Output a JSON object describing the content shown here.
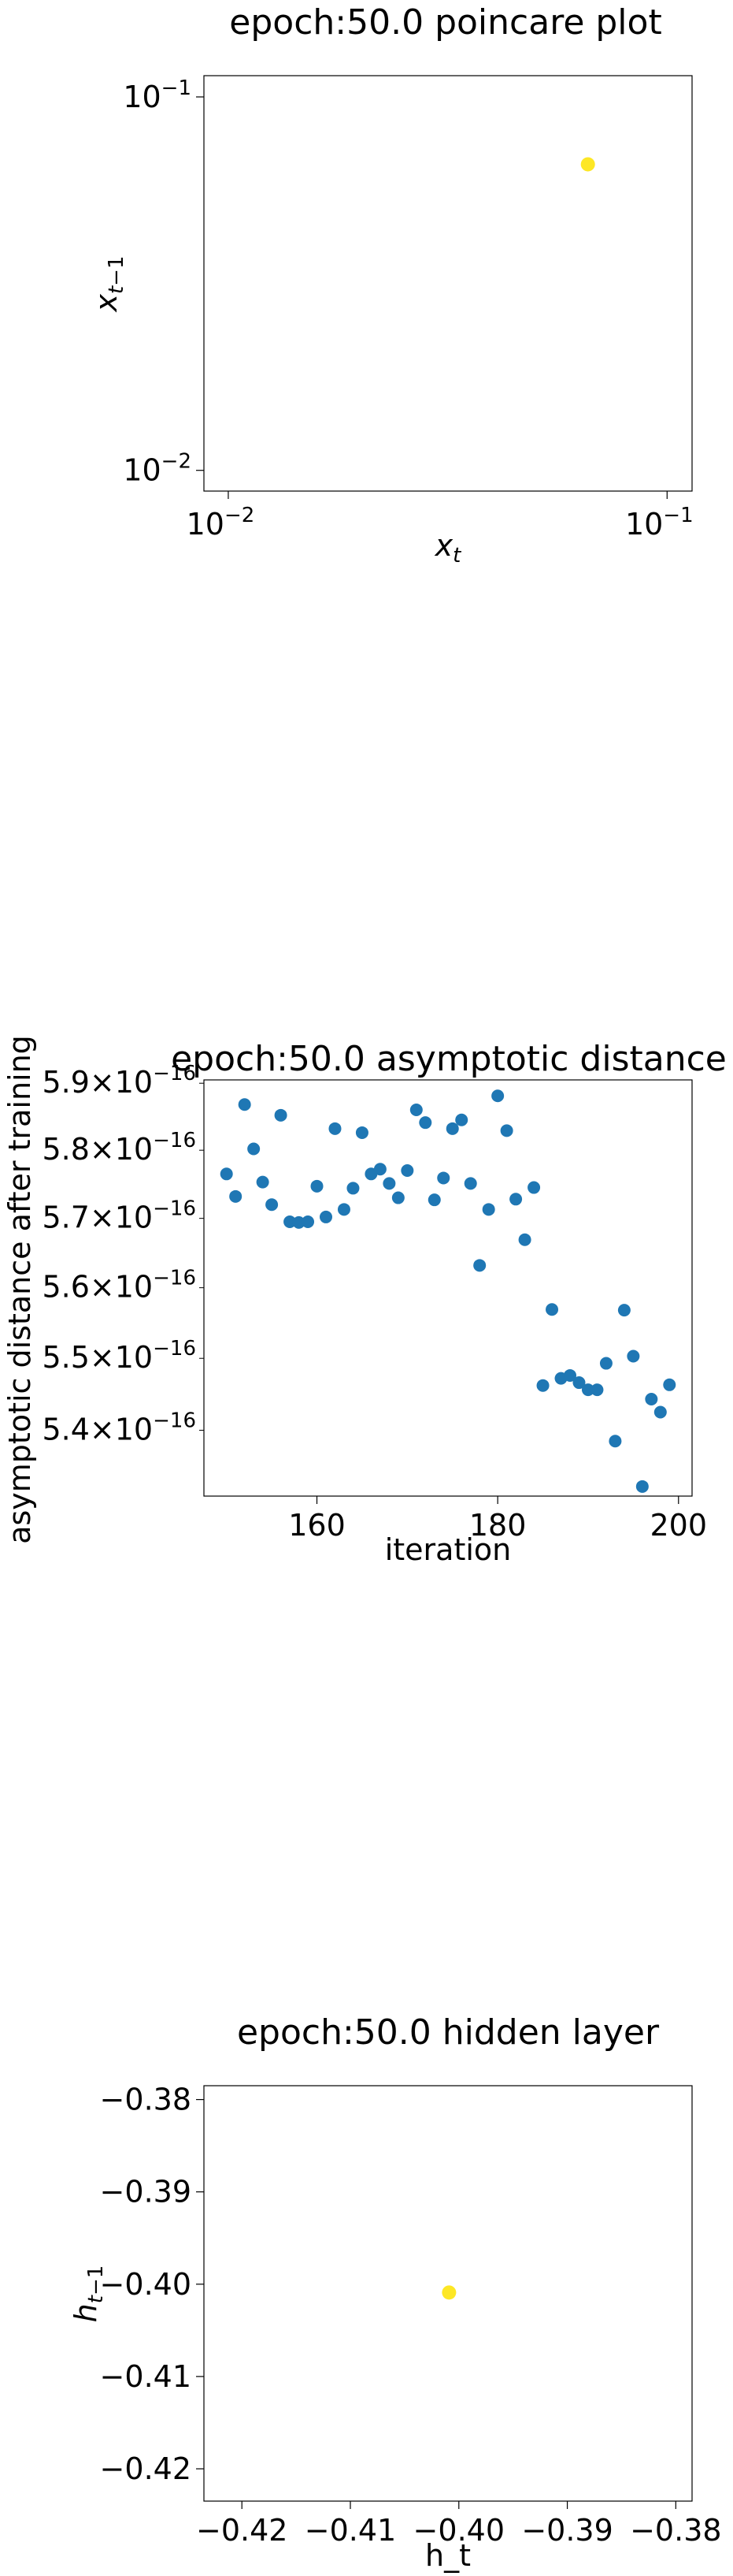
{
  "colors": {
    "background": "#ffffff",
    "scatter_blue": "#1f77b4",
    "point_yellow": "#fde725",
    "axis": "#000000"
  },
  "chart_data": [
    {
      "type": "scatter",
      "title": "epoch:50.0 poincare plot",
      "xlabel": "x_t",
      "ylabel": "x_{t-1}",
      "xscale": "log",
      "yscale": "log",
      "xlim": [
        0.0088,
        0.114
      ],
      "ylim": [
        0.0088,
        0.114
      ],
      "xticks": [
        {
          "value": 0.01,
          "base": "10",
          "exp": "−2"
        },
        {
          "value": 0.1,
          "base": "10",
          "exp": "−1"
        }
      ],
      "yticks": [
        {
          "value": 0.01,
          "base": "10",
          "exp": "−2"
        },
        {
          "value": 0.1,
          "base": "10",
          "exp": "−1"
        }
      ],
      "grid": false,
      "points": [
        {
          "x": 0.066,
          "y": 0.066
        }
      ]
    },
    {
      "type": "scatter",
      "title": "epoch:50.0 asymptotic distance",
      "xlabel": "iteration",
      "ylabel": "asymptotic distance after training",
      "xscale": "linear",
      "yscale": "log",
      "xlim": [
        147.5,
        201.5
      ],
      "ylim": [
        5.31e-16,
        5.905e-16
      ],
      "xticks": [
        160,
        180,
        200
      ],
      "yticks": [
        {
          "value": 5.4e-16,
          "mantissa": "5.4",
          "exp": "−16"
        },
        {
          "value": 5.5e-16,
          "mantissa": "5.5",
          "exp": "−16"
        },
        {
          "value": 5.6e-16,
          "mantissa": "5.6",
          "exp": "−16"
        },
        {
          "value": 5.7e-16,
          "mantissa": "5.7",
          "exp": "−16"
        },
        {
          "value": 5.8e-16,
          "mantissa": "5.8",
          "exp": "−16"
        },
        {
          "value": 5.9e-16,
          "mantissa": "5.9",
          "exp": "−16"
        }
      ],
      "grid": false,
      "x": [
        150,
        151,
        152,
        153,
        154,
        155,
        156,
        157,
        158,
        159,
        160,
        161,
        162,
        163,
        164,
        165,
        166,
        167,
        168,
        169,
        170,
        171,
        172,
        173,
        174,
        175,
        176,
        177,
        178,
        179,
        180,
        181,
        182,
        183,
        184,
        185,
        186,
        187,
        188,
        189,
        190,
        191,
        192,
        193,
        194,
        195,
        196,
        197,
        198,
        199
      ],
      "y": [
        5.765e-16,
        5.732e-16,
        5.868e-16,
        5.802e-16,
        5.753e-16,
        5.72e-16,
        5.852e-16,
        5.695e-16,
        5.694e-16,
        5.695e-16,
        5.747e-16,
        5.702e-16,
        5.832e-16,
        5.713e-16,
        5.744e-16,
        5.826e-16,
        5.765e-16,
        5.772e-16,
        5.751e-16,
        5.73e-16,
        5.77e-16,
        5.86e-16,
        5.841e-16,
        5.727e-16,
        5.759e-16,
        5.832e-16,
        5.845e-16,
        5.751e-16,
        5.632e-16,
        5.713e-16,
        5.881e-16,
        5.829e-16,
        5.728e-16,
        5.669e-16,
        5.745e-16,
        5.462e-16,
        5.569e-16,
        5.472e-16,
        5.476e-16,
        5.466e-16,
        5.456e-16,
        5.456e-16,
        5.493e-16,
        5.385e-16,
        5.568e-16,
        5.503e-16,
        5.323e-16,
        5.443e-16,
        5.425e-16,
        5.463e-16
      ]
    },
    {
      "type": "scatter",
      "title": "epoch:50.0 hidden layer",
      "xlabel": "h_t",
      "ylabel": "h_{t-1}",
      "xscale": "linear",
      "yscale": "linear",
      "xlim": [
        -0.4235,
        -0.3785
      ],
      "ylim": [
        -0.4235,
        -0.3785
      ],
      "xticks": [
        "−0.42",
        "−0.41",
        "−0.40",
        "−0.39",
        "−0.38"
      ],
      "yticks": [
        "−0.38",
        "−0.39",
        "−0.40",
        "−0.41",
        "−0.42"
      ],
      "tick_values": [
        -0.42,
        -0.41,
        -0.4,
        -0.39,
        -0.38
      ],
      "grid": false,
      "points": [
        {
          "x": -0.4009,
          "y": -0.4009
        }
      ]
    }
  ]
}
